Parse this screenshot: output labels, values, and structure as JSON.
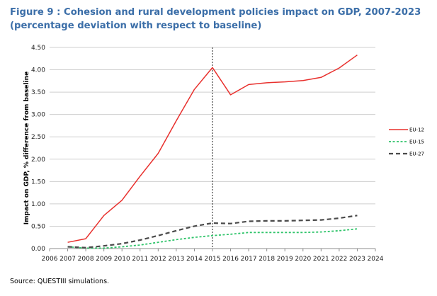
{
  "figure": {
    "title": "Figure 9 : Cohesion and rural development policies impact on GDP, 2007-2023 (percentage deviation with respect to baseline)",
    "source": "Source: QUESTIII simulations."
  },
  "chart_data": {
    "type": "line",
    "title": "Figure 9 : Cohesion and rural development policies impact on GDP, 2007-2023 (percentage deviation with respect to baseline)",
    "xlabel": "",
    "ylabel": "Impact on GDP, % difference from baseline",
    "xlim": [
      2006,
      2024
    ],
    "ylim": [
      0,
      4.5
    ],
    "x_ticks": [
      "2006",
      "2007",
      "2008",
      "2009",
      "2010",
      "2011",
      "2012",
      "2013",
      "2014",
      "2015",
      "2016",
      "2017",
      "2018",
      "2019",
      "2020",
      "2021",
      "2022",
      "2023",
      "2024"
    ],
    "y_ticks": [
      "0.00",
      "0.50",
      "1.00",
      "1.50",
      "2.00",
      "2.50",
      "3.00",
      "3.50",
      "4.00",
      "4.50"
    ],
    "grid": "horizontal",
    "legend_position": "right",
    "vertical_marker_x": 2015,
    "x": [
      2007,
      2008,
      2009,
      2010,
      2011,
      2012,
      2013,
      2014,
      2015,
      2016,
      2017,
      2018,
      2019,
      2020,
      2021,
      2022,
      2023
    ],
    "series": [
      {
        "name": "EU-12",
        "color": "#e8302d",
        "dash": "solid",
        "values": [
          0.14,
          0.22,
          0.74,
          1.08,
          1.62,
          2.13,
          2.86,
          3.56,
          4.05,
          3.44,
          3.67,
          3.71,
          3.73,
          3.76,
          3.83,
          4.04,
          4.33
        ]
      },
      {
        "name": "EU-15",
        "color": "#2fc46a",
        "dash": "dotted",
        "values": [
          0.04,
          0.01,
          0.01,
          0.04,
          0.08,
          0.14,
          0.2,
          0.25,
          0.29,
          0.32,
          0.36,
          0.36,
          0.36,
          0.36,
          0.37,
          0.4,
          0.44
        ]
      },
      {
        "name": "EU-27",
        "color": "#4a4a4a",
        "dash": "dashed",
        "values": [
          0.04,
          0.02,
          0.06,
          0.11,
          0.19,
          0.29,
          0.4,
          0.5,
          0.57,
          0.56,
          0.61,
          0.62,
          0.62,
          0.63,
          0.64,
          0.68,
          0.74
        ]
      }
    ]
  }
}
